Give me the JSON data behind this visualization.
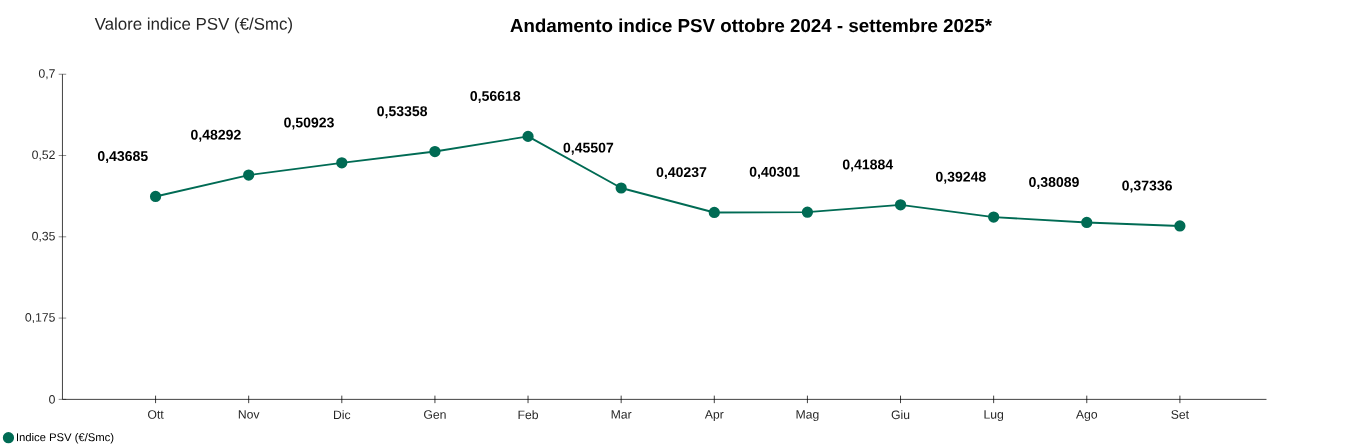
{
  "chart_data": {
    "type": "line",
    "title": "Andamento indice PSV ottobre 2024 - settembre 2025*",
    "ylabel": "Valore indice PSV (€/Smc)",
    "categories": [
      "Ott",
      "Nov",
      "Dic",
      "Gen",
      "Feb",
      "Mar",
      "Apr",
      "Mag",
      "Giu",
      "Lug",
      "Ago",
      "Set"
    ],
    "series": [
      {
        "name": "Indice PSV (€/Smc)",
        "color": "#006b54",
        "values": [
          0.43685,
          0.48292,
          0.50923,
          0.53358,
          0.56618,
          0.45507,
          0.40237,
          0.40301,
          0.41884,
          0.39248,
          0.38089,
          0.37336
        ],
        "value_labels": [
          "0,43685",
          "0,48292",
          "0,50923",
          "0,53358",
          "0,56618",
          "0,45507",
          "0,40237",
          "0,40301",
          "0,41884",
          "0,39248",
          "0,38089",
          "0,37336"
        ]
      }
    ],
    "ylim": [
      0,
      0.7
    ],
    "yticks": [
      0,
      {
        "value": 0.175,
        "label": "0,175"
      },
      {
        "value": 0.35,
        "label": "0,35"
      },
      {
        "value": 0.525,
        "label": "0,52"
      },
      {
        "value": 0.7,
        "label": "0,7"
      }
    ],
    "marker": "circle",
    "line_style": "solid",
    "legend": "bottom left",
    "grid": false
  }
}
